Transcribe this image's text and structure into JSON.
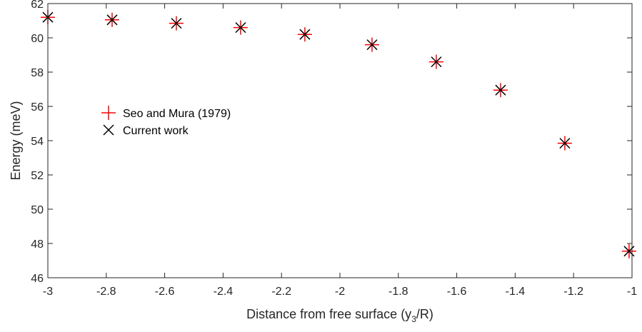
{
  "chart_data": {
    "type": "scatter",
    "title": "",
    "xlabel_pre": "Distance from free surface (y",
    "xlabel_sub": "3",
    "xlabel_post": "/R)",
    "ylabel": "Energy (meV)",
    "xlim": [
      -3,
      -1
    ],
    "ylim": [
      46,
      62
    ],
    "xticks": [
      -3,
      -2.8,
      -2.6,
      -2.4,
      -2.2,
      -2,
      -1.8,
      -1.6,
      -1.4,
      -1.2,
      -1
    ],
    "xtick_labels": [
      "-3",
      "-2.8",
      "-2.6",
      "-2.4",
      "-2.2",
      "-2",
      "-1.8",
      "-1.6",
      "-1.4",
      "-1.2",
      "-1"
    ],
    "yticks": [
      46,
      48,
      50,
      52,
      54,
      56,
      58,
      60,
      62
    ],
    "ytick_labels": [
      "46",
      "48",
      "50",
      "52",
      "54",
      "56",
      "58",
      "60",
      "62"
    ],
    "legend_placement": "center-left",
    "series": [
      {
        "name": "Seo and Mura (1979)",
        "marker": "plus",
        "color": "#ff0000",
        "x": [
          -3.0,
          -2.78,
          -2.56,
          -2.34,
          -2.12,
          -1.89,
          -1.67,
          -1.45,
          -1.23,
          -1.01
        ],
        "y": [
          61.2,
          61.05,
          60.85,
          60.6,
          60.2,
          59.6,
          58.6,
          56.95,
          53.85,
          47.55
        ]
      },
      {
        "name": "Current work",
        "marker": "x",
        "color": "#000000",
        "x": [
          -3.0,
          -2.78,
          -2.56,
          -2.34,
          -2.12,
          -1.89,
          -1.67,
          -1.45,
          -1.23,
          -1.01
        ],
        "y": [
          61.2,
          61.05,
          60.85,
          60.6,
          60.2,
          59.6,
          58.6,
          56.95,
          53.85,
          47.55
        ]
      }
    ]
  }
}
